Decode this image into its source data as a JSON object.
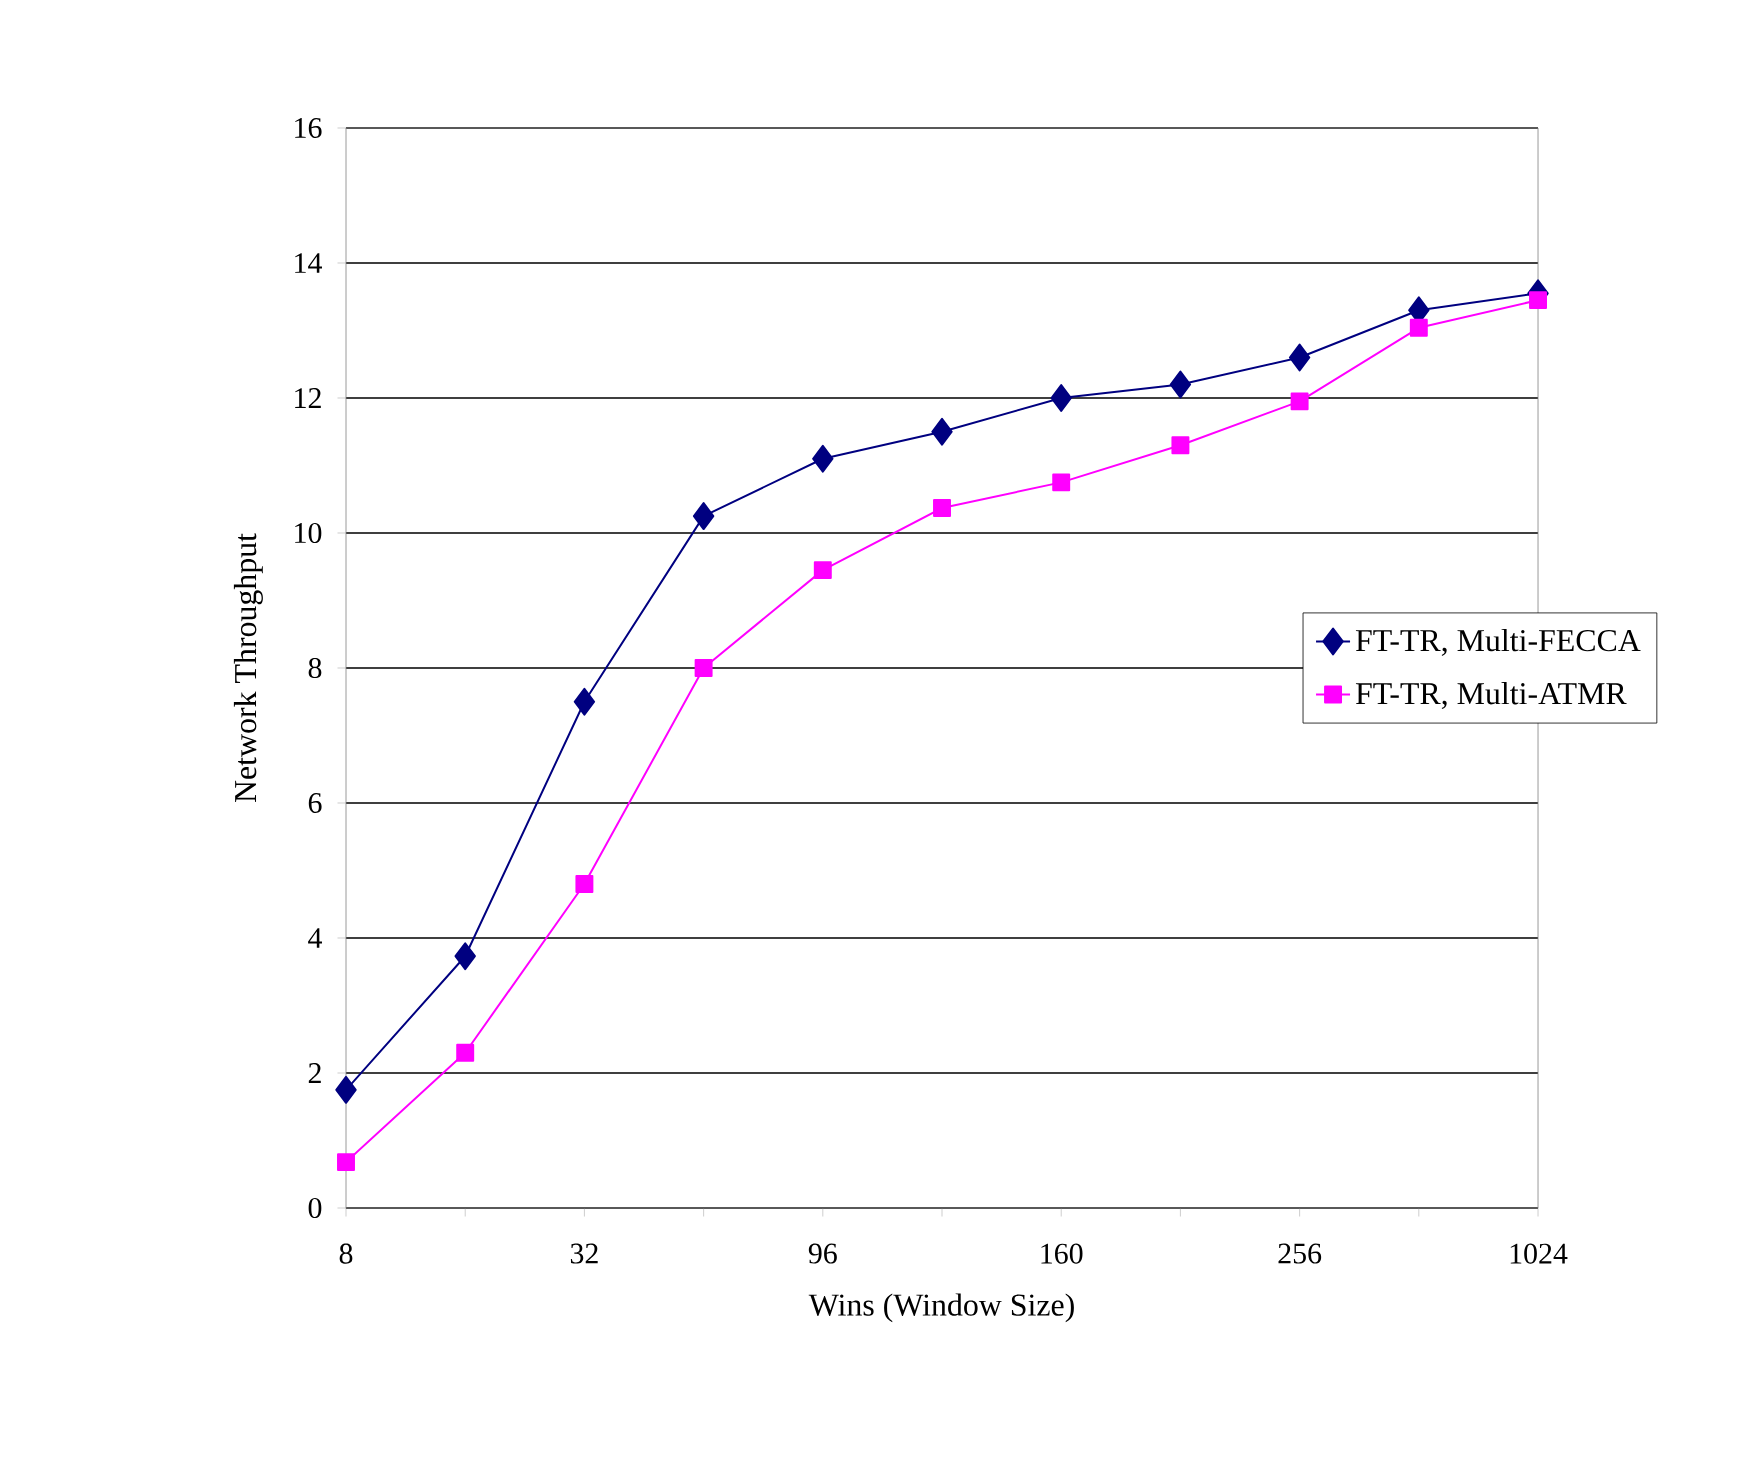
{
  "chart_data": {
    "type": "line",
    "xlabel": "Wins (Window Size)",
    "ylabel": "Network Throughput",
    "categories": [
      "8",
      null,
      "32",
      null,
      "96",
      null,
      "160",
      null,
      "256",
      null,
      "1024"
    ],
    "series": [
      {
        "name": "FT-TR, Multi-FECCA",
        "color": "#000080",
        "marker": "diamond",
        "values": [
          1.75,
          3.73,
          7.5,
          10.25,
          11.1,
          11.5,
          12.0,
          12.2,
          12.6,
          13.3,
          13.55
        ]
      },
      {
        "name": "FT-TR, Multi-ATMR",
        "color": "#ff00ff",
        "marker": "square",
        "values": [
          0.68,
          2.3,
          4.8,
          8.0,
          9.45,
          10.37,
          10.75,
          11.3,
          11.95,
          13.04,
          13.45
        ]
      }
    ],
    "ylim": [
      0,
      16
    ],
    "yticks": [
      0,
      2,
      4,
      6,
      8,
      10,
      12,
      14,
      16
    ],
    "grid": "y",
    "legend": "right",
    "line_style": "solid"
  }
}
